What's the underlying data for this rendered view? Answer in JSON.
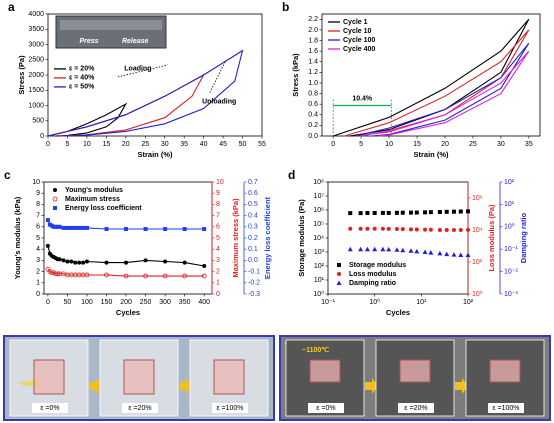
{
  "chart_data": [
    {
      "type": "line",
      "panel": "a",
      "xlabel": "Strain (%)",
      "ylabel": "Stress (Pa)",
      "xlim": [
        0,
        55
      ],
      "xticks": [
        0,
        5,
        10,
        15,
        20,
        25,
        30,
        35,
        40,
        45,
        50,
        55
      ],
      "ylim": [
        0,
        4000
      ],
      "yticks": [
        0,
        500,
        1000,
        1500,
        2000,
        2500,
        3000,
        3500,
        4000
      ],
      "legend": "center left",
      "inset_labels": [
        "Press",
        "Release"
      ],
      "annotations": [
        "Loading",
        "Unloading"
      ],
      "series": [
        {
          "name": "ε = 20%",
          "color": "#000000",
          "x": [
            0,
            5,
            10,
            15,
            20,
            18,
            15,
            10,
            5,
            2
          ],
          "values": [
            0,
            150,
            400,
            700,
            1050,
            600,
            300,
            100,
            20,
            0
          ]
        },
        {
          "name": "ε = 40%",
          "color": "#e02020",
          "x": [
            0,
            10,
            20,
            30,
            40,
            37,
            30,
            20,
            10,
            3
          ],
          "values": [
            0,
            300,
            700,
            1300,
            2000,
            1300,
            600,
            200,
            40,
            0
          ]
        },
        {
          "name": "ε = 50%",
          "color": "#2020d0",
          "x": [
            0,
            10,
            20,
            30,
            40,
            50,
            48,
            40,
            30,
            20,
            10,
            4
          ],
          "values": [
            0,
            300,
            700,
            1300,
            2000,
            2800,
            1800,
            900,
            400,
            150,
            30,
            0
          ]
        }
      ]
    },
    {
      "type": "line",
      "panel": "b",
      "xlabel": "Strain (%)",
      "ylabel": "Stress (kPa)",
      "xlim": [
        -2,
        37
      ],
      "xticks": [
        0,
        5,
        10,
        15,
        20,
        25,
        30,
        35
      ],
      "ylim": [
        0,
        2.3
      ],
      "yticks": [
        {
          "value": 0,
          "label": "0.0"
        },
        0.2,
        0.4,
        0.6,
        0.8,
        {
          "value": 1,
          "label": "1.0"
        },
        1.2,
        1.4,
        1.6,
        1.8,
        {
          "value": 2,
          "label": "2.0"
        },
        2.2
      ],
      "legend": "upper left",
      "span_label": "10.4%",
      "span": [
        0,
        10.4
      ],
      "span_color": "#10b040",
      "series": [
        {
          "name": "Cycle 1",
          "color": "#000000",
          "x": [
            0,
            10,
            20,
            30,
            35,
            30,
            20,
            10,
            3
          ],
          "values": [
            0,
            0.35,
            0.9,
            1.6,
            2.2,
            1.2,
            0.5,
            0.12,
            0
          ]
        },
        {
          "name": "Cycle 10",
          "color": "#e02020",
          "x": [
            2,
            10,
            20,
            30,
            35,
            30,
            20,
            10,
            4
          ],
          "values": [
            0,
            0.25,
            0.75,
            1.4,
            2.0,
            1.1,
            0.4,
            0.08,
            0
          ]
        },
        {
          "name": "Cycle 100",
          "color": "#2020d0",
          "x": [
            4,
            10,
            20,
            30,
            35,
            30,
            20,
            10,
            7
          ],
          "values": [
            0,
            0.15,
            0.5,
            1.1,
            1.75,
            0.9,
            0.3,
            0.03,
            0
          ]
        },
        {
          "name": "Cycle 400",
          "color": "#e020e0",
          "x": [
            5,
            10,
            20,
            30,
            35,
            30,
            20,
            10,
            8
          ],
          "values": [
            0,
            0.1,
            0.4,
            1.0,
            1.6,
            0.8,
            0.25,
            0.02,
            0
          ]
        }
      ]
    },
    {
      "type": "line",
      "panel": "c",
      "xlabel": "Cycles",
      "ylabel": "Young's modulus (kPa)",
      "y2label": "Maximum stress (kPa)",
      "y3label": "Energy loss coefficient",
      "xlim": [
        -10,
        420
      ],
      "xticks": [
        0,
        50,
        100,
        150,
        200,
        250,
        300,
        350,
        400
      ],
      "ylim": [
        0,
        10
      ],
      "yticks": [
        0,
        1,
        2,
        3,
        4,
        5,
        6,
        7,
        8,
        9,
        10
      ],
      "y2lim": [
        0,
        10
      ],
      "y2ticks": [
        0,
        1,
        2,
        3,
        4,
        5,
        6,
        7,
        8,
        9,
        10
      ],
      "y3lim": [
        -0.3,
        0.7
      ],
      "y3ticks": [
        -0.3,
        -0.2,
        -0.1,
        {
          "value": 0,
          "label": "0.0"
        },
        0.1,
        0.2,
        0.3,
        0.4,
        0.5,
        0.6,
        0.7
      ],
      "legend": "upper left",
      "x": [
        0,
        5,
        10,
        15,
        20,
        25,
        30,
        40,
        50,
        60,
        70,
        80,
        90,
        100,
        150,
        200,
        250,
        300,
        350,
        400
      ],
      "series": [
        {
          "name": "Young's modulus",
          "color": "#000000",
          "marker": "circle",
          "values": [
            4.3,
            3.6,
            3.4,
            3.3,
            3.2,
            3.1,
            3.1,
            3.0,
            2.9,
            2.9,
            2.8,
            2.8,
            2.8,
            2.9,
            2.8,
            2.8,
            3.0,
            2.9,
            2.8,
            2.5
          ]
        },
        {
          "name": "Maximum stress",
          "color": "#e02020",
          "marker": "circle-open",
          "axis": "y2",
          "values": [
            2.2,
            2.0,
            1.9,
            1.9,
            1.8,
            1.8,
            1.8,
            1.8,
            1.7,
            1.7,
            1.7,
            1.7,
            1.7,
            1.7,
            1.7,
            1.6,
            1.6,
            1.6,
            1.6,
            1.6
          ]
        },
        {
          "name": "Energy loss coefficient",
          "color": "#2040e0",
          "marker": "square",
          "axis": "y3",
          "values": [
            0.36,
            0.32,
            0.31,
            0.3,
            0.3,
            0.3,
            0.3,
            0.29,
            0.29,
            0.29,
            0.29,
            0.29,
            0.29,
            0.29,
            0.28,
            0.28,
            0.28,
            0.28,
            0.28,
            0.28
          ]
        }
      ]
    },
    {
      "type": "scatter",
      "panel": "d",
      "xlabel": "Cycles",
      "ylabel": "Storage modulus (Pa)",
      "y2label": "Loss modulus (Pa)",
      "y3label": "Damping ratio",
      "xscale": "log",
      "yscale": "log",
      "xlim": [
        0.1,
        100
      ],
      "xticks": [
        {
          "value": 0.1,
          "label": "10⁻¹"
        },
        {
          "value": 1,
          "label": "10⁰"
        },
        {
          "value": 10,
          "label": "10¹"
        },
        {
          "value": 100,
          "label": "10²"
        }
      ],
      "ylim": [
        1,
        100000000
      ],
      "yticks": [
        {
          "value": 1,
          "label": "10⁰"
        },
        {
          "value": 10,
          "label": "10¹"
        },
        {
          "value": 100,
          "label": "10²"
        },
        {
          "value": 1000,
          "label": "10³"
        },
        {
          "value": 10000,
          "label": "10⁴"
        },
        {
          "value": 100000,
          "label": "10⁵"
        },
        {
          "value": 1000000,
          "label": "10⁶"
        },
        {
          "value": 10000000,
          "label": "10⁷"
        },
        {
          "value": 100000000,
          "label": "10⁸"
        }
      ],
      "y2lim": [
        1,
        10000000
      ],
      "y2ticks": [
        {
          "value": 1,
          "label": "10⁰"
        },
        {
          "value": 100,
          "label": "10²"
        },
        {
          "value": 10000,
          "label": "10⁴"
        },
        {
          "value": 1000000,
          "label": "10⁶"
        }
      ],
      "y3lim": [
        0.001,
        100
      ],
      "y3ticks": [
        {
          "value": 0.001,
          "label": "10⁻³"
        },
        {
          "value": 0.01,
          "label": "10⁻²"
        },
        {
          "value": 0.1,
          "label": "10⁻¹"
        },
        {
          "value": 1,
          "label": "10⁰"
        },
        {
          "value": 10,
          "label": "10¹"
        },
        {
          "value": 100,
          "label": "10²"
        }
      ],
      "legend": "lower left",
      "x": [
        0.3,
        0.5,
        0.7,
        1,
        1.5,
        2,
        3,
        4,
        6,
        8,
        12,
        16,
        25,
        35,
        50,
        70,
        100
      ],
      "series": [
        {
          "name": "Storage modulus",
          "color": "#000000",
          "marker": "square",
          "values": [
            600000,
            600000,
            610000,
            610000,
            620000,
            620000,
            630000,
            640000,
            650000,
            660000,
            680000,
            700000,
            720000,
            740000,
            760000,
            780000,
            800000
          ]
        },
        {
          "name": "Loss modulus",
          "color": "#e02020",
          "marker": "circle",
          "axis": "y2",
          "values": [
            12000,
            12000,
            12000,
            12000,
            12000,
            11800,
            11500,
            11300,
            11000,
            10800,
            10500,
            10300,
            10000,
            10000,
            10000,
            10000,
            10200
          ]
        },
        {
          "name": "Damping ratio",
          "color": "#2020e0",
          "marker": "triangle",
          "axis": "y3",
          "values": [
            0.1,
            0.1,
            0.1,
            0.1,
            0.1,
            0.098,
            0.095,
            0.09,
            0.085,
            0.08,
            0.075,
            0.07,
            0.065,
            0.06,
            0.057,
            0.055,
            0.055
          ]
        }
      ]
    }
  ],
  "photos": [
    {
      "panel": "e",
      "temperature": "~600℃",
      "captions": [
        "ε =0%",
        "ε =20%",
        "ε =100%"
      ]
    },
    {
      "panel": "f",
      "temperature": "~1100℃",
      "captions": [
        "ε =0%",
        "ε =20%",
        "ε =100%"
      ]
    }
  ]
}
